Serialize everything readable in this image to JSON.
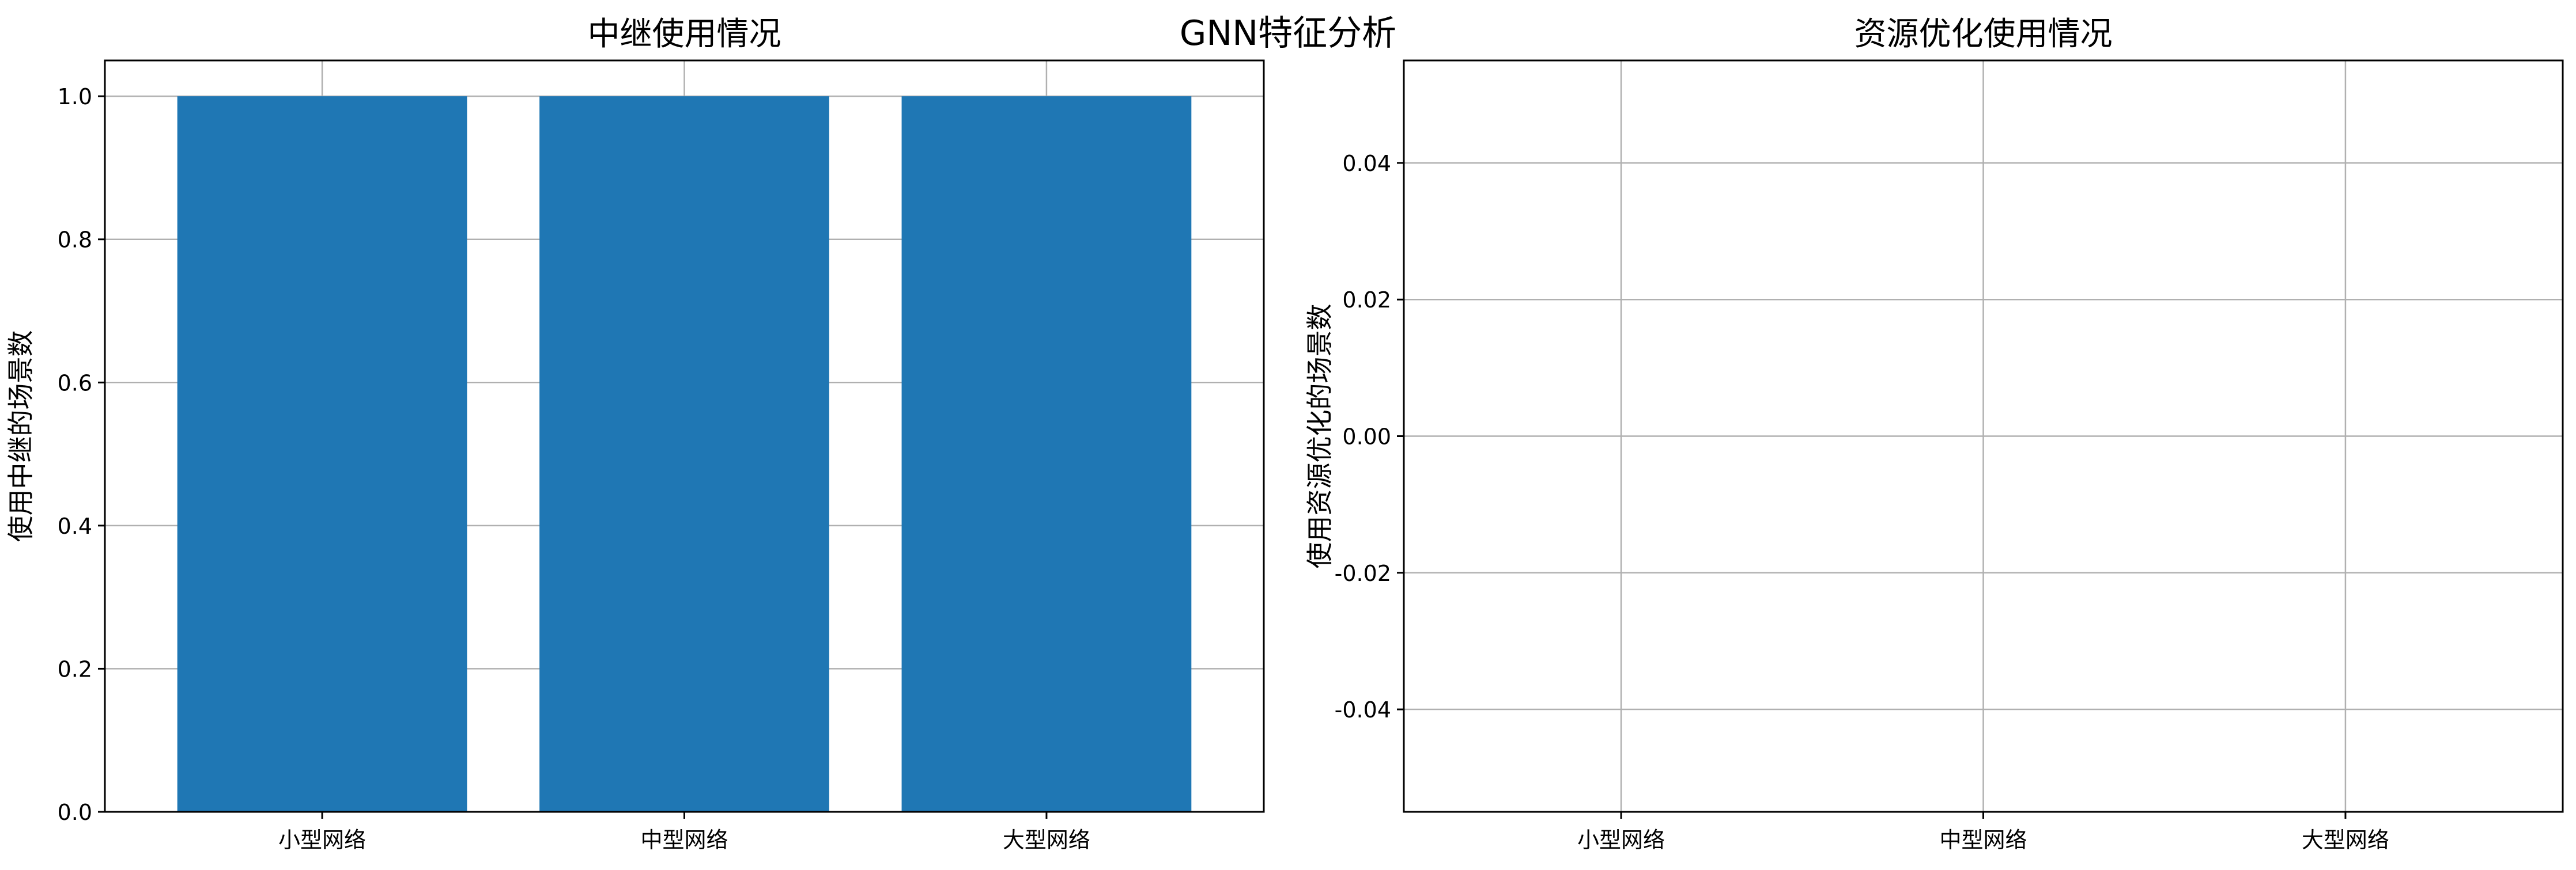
{
  "figure": {
    "suptitle": "GNN特征分析"
  },
  "colors": {
    "bar": "#1f77b4",
    "grid": "#b0b0b0",
    "axis": "#000000"
  },
  "chart_data": [
    {
      "type": "bar",
      "title": "中继使用情况",
      "xlabel": "",
      "ylabel": "使用中继的场景数",
      "categories": [
        "小型网络",
        "中型网络",
        "大型网络"
      ],
      "values": [
        1,
        1,
        1
      ],
      "ylim": [
        0,
        1.05
      ],
      "yticks": [
        "0.0",
        "0.2",
        "0.4",
        "0.6",
        "0.8",
        "1.0"
      ],
      "grid": true
    },
    {
      "type": "bar",
      "title": "资源优化使用情况",
      "xlabel": "",
      "ylabel": "使用资源优化的场景数",
      "categories": [
        "小型网络",
        "中型网络",
        "大型网络"
      ],
      "values": [
        0,
        0,
        0
      ],
      "ylim": [
        -0.055,
        0.055
      ],
      "yticks": [
        "-0.04",
        "-0.02",
        "0.00",
        "0.02",
        "0.04"
      ],
      "grid": true
    }
  ]
}
